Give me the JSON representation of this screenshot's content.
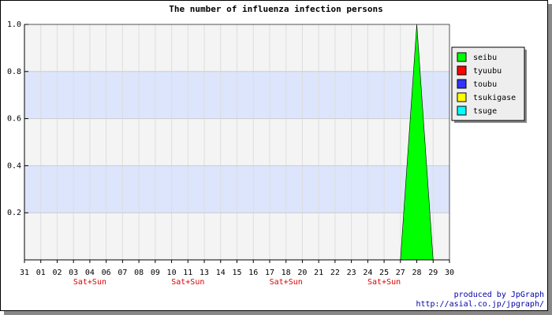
{
  "chart_data": {
    "type": "area",
    "title": "The number of influenza infection persons",
    "categories": [
      "31",
      "01",
      "02",
      "03",
      "04",
      "06",
      "07",
      "08",
      "09",
      "10",
      "11",
      "13",
      "14",
      "15",
      "16",
      "17",
      "18",
      "20",
      "21",
      "22",
      "23",
      "24",
      "25",
      "27",
      "28",
      "29",
      "30"
    ],
    "sublabels": [
      null,
      null,
      null,
      null,
      "Sat+Sun",
      null,
      null,
      null,
      null,
      null,
      "Sat+Sun",
      null,
      null,
      null,
      null,
      null,
      "Sat+Sun",
      null,
      null,
      null,
      null,
      null,
      "Sat+Sun",
      null,
      null,
      null,
      null
    ],
    "series": [
      {
        "name": "seibu",
        "color": "#00ff00",
        "values": [
          0,
          0,
          0,
          0,
          0,
          0,
          0,
          0,
          0,
          0,
          0,
          0,
          0,
          0,
          0,
          0,
          0,
          0,
          0,
          0,
          0,
          0,
          0,
          0,
          1,
          0,
          0
        ]
      },
      {
        "name": "tyuubu",
        "color": "#ff0000",
        "values": [
          0,
          0,
          0,
          0,
          0,
          0,
          0,
          0,
          0,
          0,
          0,
          0,
          0,
          0,
          0,
          0,
          0,
          0,
          0,
          0,
          0,
          0,
          0,
          0,
          0,
          0,
          0
        ]
      },
      {
        "name": "toubu",
        "color": "#3333ff",
        "values": [
          0,
          0,
          0,
          0,
          0,
          0,
          0,
          0,
          0,
          0,
          0,
          0,
          0,
          0,
          0,
          0,
          0,
          0,
          0,
          0,
          0,
          0,
          0,
          0,
          0,
          0,
          0
        ]
      },
      {
        "name": "tsukigase",
        "color": "#ffff00",
        "values": [
          0,
          0,
          0,
          0,
          0,
          0,
          0,
          0,
          0,
          0,
          0,
          0,
          0,
          0,
          0,
          0,
          0,
          0,
          0,
          0,
          0,
          0,
          0,
          0,
          0,
          0,
          0
        ]
      },
      {
        "name": "tsuge",
        "color": "#00ffff",
        "values": [
          0,
          0,
          0,
          0,
          0,
          0,
          0,
          0,
          0,
          0,
          0,
          0,
          0,
          0,
          0,
          0,
          0,
          0,
          0,
          0,
          0,
          0,
          0,
          0,
          0,
          0,
          0
        ]
      }
    ],
    "ylim": [
      0,
      1
    ],
    "yticks": [
      0.2,
      0.4,
      0.6,
      0.8,
      {
        "value": 1,
        "label": "1.0"
      }
    ],
    "band_colors": [
      "#f4f4f4",
      "#dce5fc"
    ],
    "sublabel_color": "#dd0000",
    "credits": [
      "produced by JpGraph",
      "http://asial.co.jp/jpgraph/"
    ],
    "credits_color": "#0000aa"
  }
}
